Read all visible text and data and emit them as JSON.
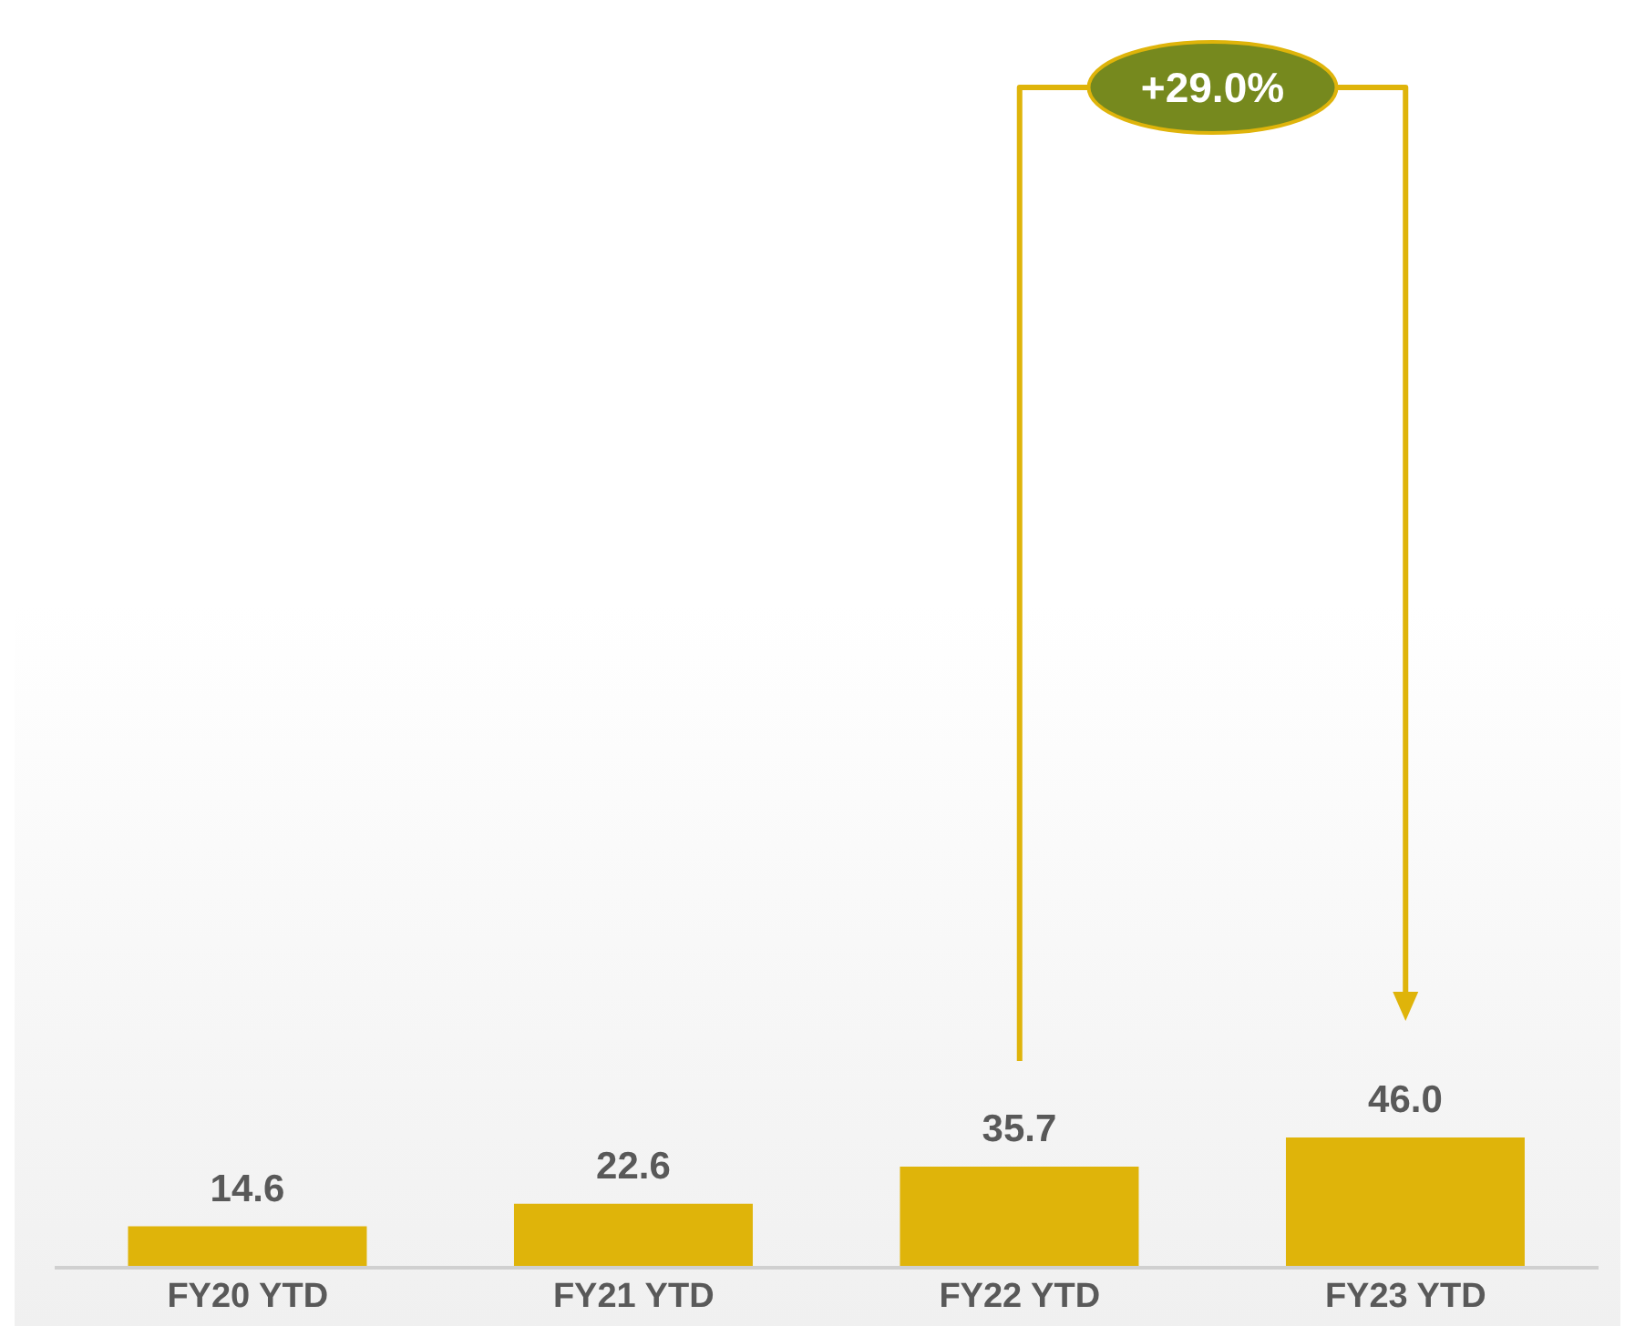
{
  "chart_data": {
    "type": "bar",
    "categories": [
      "FY20 YTD",
      "FY21 YTD",
      "FY22 YTD",
      "FY23 YTD"
    ],
    "values": [
      14.6,
      22.6,
      35.7,
      46.0
    ],
    "color": "#dfb40a",
    "value_labels": [
      "14.6",
      "22.6",
      "35.7",
      "46.0"
    ],
    "annotations": [
      "+29.0%"
    ]
  }
}
